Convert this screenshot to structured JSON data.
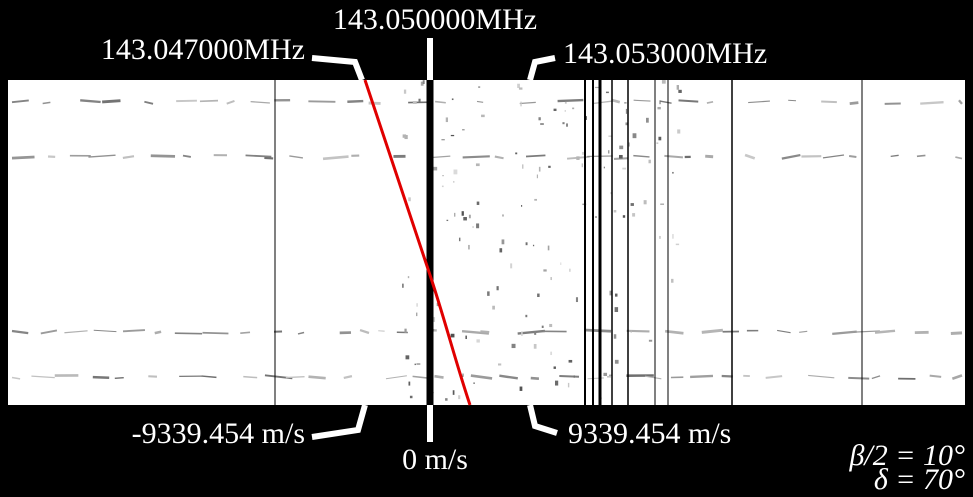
{
  "top_labels": {
    "left": "143.047000MHz",
    "center": "143.050000MHz",
    "right": "143.053000MHz"
  },
  "bottom_labels": {
    "left": "-9339.454 m/s",
    "center": "0 m/s",
    "right": "9339.454 m/s"
  },
  "parameters": {
    "beta": "β/2 = 10°",
    "delta": "δ = 70°"
  }
}
